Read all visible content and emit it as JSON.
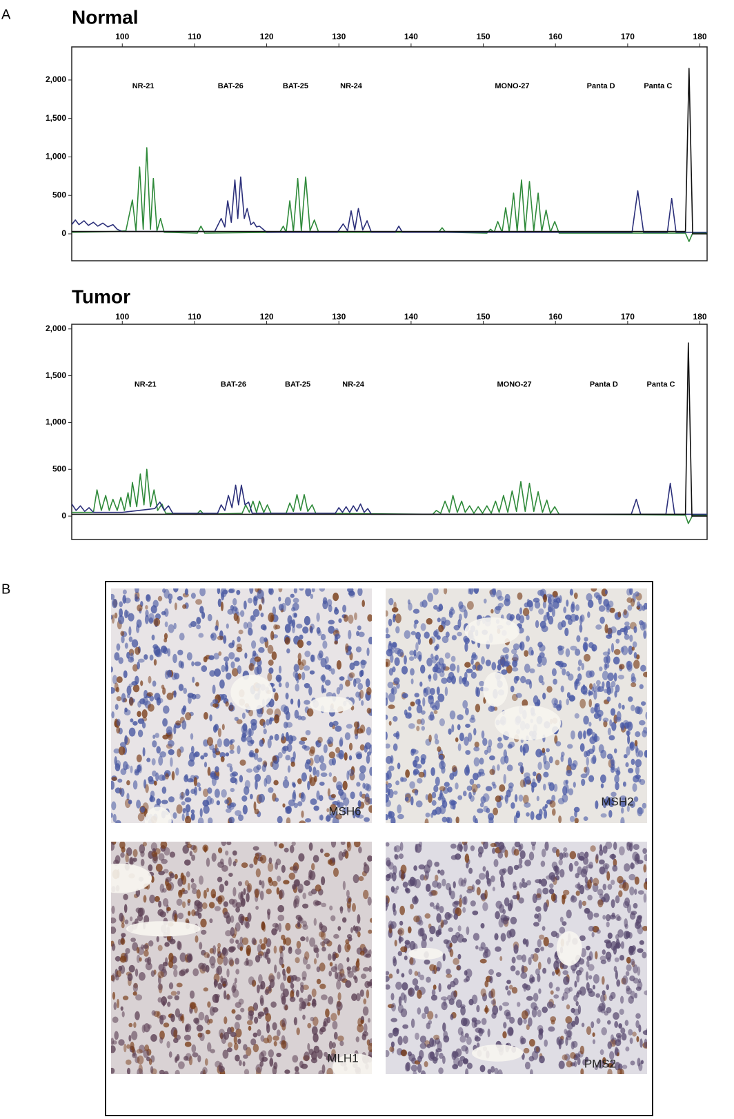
{
  "panel_labels": [
    "A",
    "B"
  ],
  "chart_data": [
    {
      "type": "line",
      "title": "Normal",
      "xlim": [
        93,
        181
      ],
      "ylim": [
        -350,
        2430
      ],
      "xticks": [
        100,
        110,
        120,
        130,
        140,
        150,
        160,
        170,
        180
      ],
      "yticks": [
        0,
        500,
        {
          "value": 1000,
          "label": "1,000"
        },
        {
          "value": 1500,
          "label": "1,500"
        },
        {
          "value": 2000,
          "label": "2,000"
        }
      ],
      "annotations": [
        {
          "text": "NR-21",
          "x": 102.9,
          "y": 1920
        },
        {
          "text": "BAT-26",
          "x": 115,
          "y": 1920
        },
        {
          "text": "BAT-25",
          "x": 124,
          "y": 1920
        },
        {
          "text": "NR-24",
          "x": 131.7,
          "y": 1920
        },
        {
          "text": "MONO-27",
          "x": 154,
          "y": 1920
        },
        {
          "text": "Panta D",
          "x": 166.3,
          "y": 1920
        },
        {
          "text": "Panta C",
          "x": 174.2,
          "y": 1920
        }
      ],
      "series": [
        {
          "color": "#2f8a3a",
          "x": [
            93,
            99,
            100.5,
            101.4,
            101.9,
            102.4,
            102.9,
            103.4,
            103.9,
            104.3,
            104.8,
            105.3,
            105.8,
            110.4,
            110.9,
            111.4,
            121.8,
            122.3,
            122.7,
            123.2,
            123.7,
            124.3,
            124.8,
            125.4,
            126,
            126.6,
            127.2,
            143.8,
            144.3,
            144.8,
            150.5,
            151,
            151.5,
            152,
            152.6,
            153.1,
            153.6,
            154.2,
            154.7,
            155.3,
            155.8,
            156.4,
            157,
            157.6,
            158.1,
            158.7,
            159.3,
            159.9,
            160.5,
            178,
            178.5,
            179,
            181
          ],
          "values": [
            20,
            30,
            40,
            440,
            40,
            870,
            60,
            1120,
            60,
            720,
            40,
            200,
            20,
            10,
            100,
            10,
            20,
            100,
            20,
            430,
            30,
            720,
            40,
            740,
            40,
            180,
            20,
            20,
            80,
            20,
            10,
            60,
            20,
            160,
            20,
            340,
            30,
            530,
            30,
            700,
            40,
            680,
            40,
            530,
            30,
            310,
            20,
            160,
            10,
            10,
            -100,
            10,
            10
          ]
        },
        {
          "color": "#2b2f7a",
          "x": [
            93,
            93.5,
            94,
            94.7,
            95.3,
            96,
            96.6,
            97.3,
            98,
            98.7,
            99.3,
            100,
            112.8,
            113.7,
            114.2,
            114.6,
            115.1,
            115.6,
            116,
            116.4,
            116.9,
            117.3,
            117.8,
            118.2,
            118.6,
            119,
            120,
            129.8,
            130.6,
            131.2,
            131.7,
            132.2,
            132.7,
            133.3,
            133.9,
            134.5,
            137.8,
            138.3,
            138.8,
            170.6,
            171.4,
            172.2,
            175.5,
            176.1,
            176.7,
            181
          ],
          "values": [
            120,
            180,
            120,
            170,
            110,
            150,
            100,
            140,
            90,
            120,
            60,
            30,
            30,
            200,
            90,
            430,
            150,
            700,
            200,
            740,
            200,
            330,
            120,
            150,
            90,
            100,
            20,
            20,
            130,
            40,
            300,
            50,
            330,
            50,
            170,
            20,
            20,
            100,
            20,
            20,
            560,
            20,
            20,
            460,
            20,
            20
          ]
        },
        {
          "color": "#111111",
          "x": [
            93,
            178,
            178.5,
            179,
            181
          ],
          "values": [
            30,
            30,
            2150,
            0,
            0
          ]
        }
      ]
    },
    {
      "type": "line",
      "title": "Tumor",
      "xlim": [
        93,
        181
      ],
      "ylim": [
        -250,
        2050
      ],
      "xticks": [
        100,
        110,
        120,
        130,
        140,
        150,
        160,
        170,
        180
      ],
      "yticks": [
        0,
        500,
        {
          "value": 1000,
          "label": "1,000"
        },
        {
          "value": 1500,
          "label": "1,500"
        },
        {
          "value": 2000,
          "label": "2,000"
        }
      ],
      "annotations": [
        {
          "text": "NR-21",
          "x": 103.2,
          "y": 1404
        },
        {
          "text": "BAT-26",
          "x": 115.4,
          "y": 1404
        },
        {
          "text": "BAT-25",
          "x": 124.3,
          "y": 1404
        },
        {
          "text": "NR-24",
          "x": 132,
          "y": 1404
        },
        {
          "text": "MONO-27",
          "x": 154.3,
          "y": 1404
        },
        {
          "text": "Panta D",
          "x": 166.7,
          "y": 1404
        },
        {
          "text": "Panta C",
          "x": 174.6,
          "y": 1404
        }
      ],
      "series": [
        {
          "color": "#2f8a3a",
          "x": [
            93,
            96,
            96.5,
            97.1,
            97.7,
            98.2,
            98.7,
            99.3,
            99.8,
            100.3,
            100.8,
            101.1,
            101.4,
            102,
            102.5,
            103,
            103.4,
            103.9,
            104.4,
            104.9,
            105.5,
            106,
            110.3,
            110.8,
            111.3,
            116.6,
            117.1,
            117.6,
            118.1,
            118.6,
            119,
            119.6,
            120.1,
            120.6,
            122.7,
            123.2,
            123.7,
            124.2,
            124.7,
            125.2,
            125.7,
            126.3,
            126.8,
            143,
            143.5,
            144.1,
            144.7,
            145.3,
            145.8,
            146.4,
            147,
            147.5,
            148.1,
            148.7,
            149.3,
            149.9,
            150.5,
            151.1,
            151.7,
            152.2,
            152.8,
            153.4,
            154,
            154.6,
            155.2,
            155.8,
            156.4,
            157,
            157.6,
            158.2,
            158.8,
            159.3,
            159.9,
            160.5,
            178,
            178.4,
            179,
            181
          ],
          "values": [
            40,
            40,
            280,
            60,
            220,
            60,
            180,
            60,
            200,
            60,
            250,
            100,
            360,
            100,
            450,
            120,
            500,
            100,
            280,
            60,
            130,
            30,
            20,
            60,
            20,
            30,
            120,
            40,
            160,
            40,
            160,
            40,
            120,
            30,
            30,
            140,
            50,
            230,
            60,
            230,
            50,
            120,
            30,
            20,
            60,
            30,
            160,
            40,
            220,
            40,
            160,
            40,
            110,
            30,
            100,
            30,
            110,
            30,
            160,
            40,
            220,
            40,
            270,
            50,
            370,
            50,
            350,
            50,
            260,
            40,
            170,
            30,
            100,
            20,
            10,
            -80,
            10,
            10
          ]
        },
        {
          "color": "#2b2f7a",
          "x": [
            93,
            93.6,
            94.2,
            94.8,
            95.4,
            96,
            100,
            104.5,
            105.2,
            105.8,
            106.4,
            107,
            113.2,
            113.7,
            114.2,
            114.7,
            115.2,
            115.7,
            116.1,
            116.5,
            117,
            117.5,
            118,
            129.5,
            130,
            130.5,
            131,
            131.5,
            132,
            132.5,
            133,
            133.5,
            134,
            134.5,
            170.5,
            171.2,
            171.8,
            175.3,
            175.9,
            176.5,
            181
          ],
          "values": [
            130,
            60,
            110,
            50,
            90,
            40,
            40,
            80,
            150,
            60,
            110,
            30,
            30,
            120,
            60,
            220,
            90,
            330,
            120,
            330,
            120,
            150,
            30,
            30,
            90,
            40,
            100,
            40,
            110,
            50,
            130,
            40,
            80,
            20,
            20,
            180,
            20,
            20,
            350,
            20,
            20
          ]
        },
        {
          "color": "#111111",
          "x": [
            93,
            178,
            178.4,
            178.9,
            181
          ],
          "values": [
            20,
            20,
            1850,
            0,
            0
          ]
        }
      ]
    }
  ],
  "ihc": {
    "labels": [
      "MSH6",
      "MSH2",
      "MLH1",
      "PMS2"
    ]
  }
}
